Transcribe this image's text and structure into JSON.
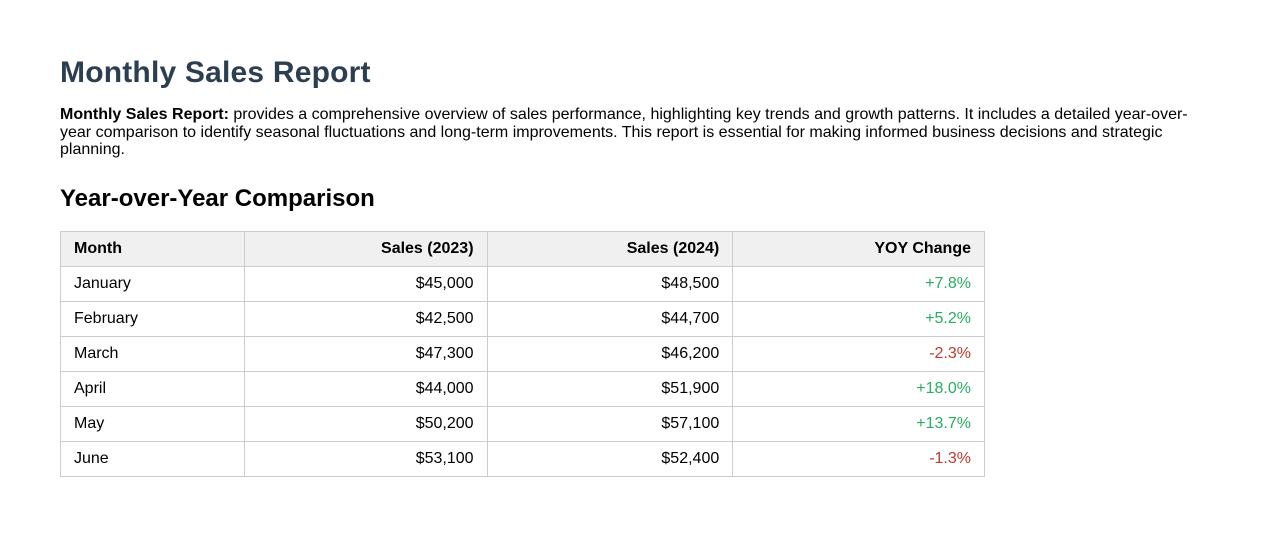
{
  "page": {
    "title": "Monthly Sales Report",
    "intro_lead": "Monthly Sales Report:",
    "intro_text": " provides a comprehensive overview of sales performance, highlighting key trends and growth patterns. It includes a detailed year-over-year comparison to identify seasonal fluctuations and long-term improvements. This report is essential for making informed business decisions and strategic planning.",
    "section_title": "Year-over-Year Comparison"
  },
  "table": {
    "columns": [
      "Month",
      "Sales (2023)",
      "Sales (2024)",
      "YOY Change"
    ],
    "rows": [
      {
        "month": "January",
        "sales_2023": "$45,000",
        "sales_2024": "$48,500",
        "yoy_change": "+7.8%",
        "trend": "positive"
      },
      {
        "month": "February",
        "sales_2023": "$42,500",
        "sales_2024": "$44,700",
        "yoy_change": "+5.2%",
        "trend": "positive"
      },
      {
        "month": "March",
        "sales_2023": "$47,300",
        "sales_2024": "$46,200",
        "yoy_change": "-2.3%",
        "trend": "negative"
      },
      {
        "month": "April",
        "sales_2023": "$44,000",
        "sales_2024": "$51,900",
        "yoy_change": "+18.0%",
        "trend": "positive"
      },
      {
        "month": "May",
        "sales_2023": "$50,200",
        "sales_2024": "$57,100",
        "yoy_change": "+13.7%",
        "trend": "positive"
      },
      {
        "month": "June",
        "sales_2023": "$53,100",
        "sales_2024": "$52,400",
        "yoy_change": "-1.3%",
        "trend": "negative"
      }
    ]
  },
  "colors": {
    "title": "#2c3e50",
    "positive": "#27ae60",
    "negative": "#c0392b",
    "header_bg": "#f0f0f0",
    "border": "#cccccc"
  }
}
